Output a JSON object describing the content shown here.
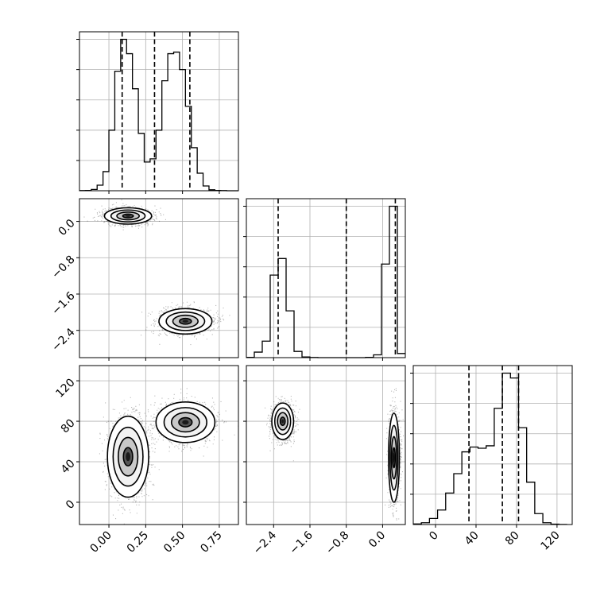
{
  "chart_data": {
    "type": "corner",
    "grid": true,
    "variables": [
      {
        "id": "p0",
        "range": [
          -0.2,
          0.88
        ],
        "ticks": [
          "0.00",
          "0.25",
          "0.50",
          "0.75"
        ],
        "tick_values": [
          0.0,
          0.25,
          0.5,
          0.75
        ],
        "quantiles": [
          0.09,
          0.31,
          0.55
        ]
      },
      {
        "id": "p1",
        "range": [
          -3.0,
          0.5
        ],
        "ticks": [
          "-2.4",
          "-1.6",
          "-0.8",
          "0.0"
        ],
        "tick_values": [
          -2.4,
          -1.6,
          -0.8,
          0.0
        ],
        "quantiles": [
          -2.3,
          -0.8,
          0.28
        ]
      },
      {
        "id": "p2",
        "range": [
          -22,
          135
        ],
        "ticks": [
          "0",
          "40",
          "80",
          "120"
        ],
        "tick_values": [
          0,
          40,
          80,
          120
        ],
        "quantiles": [
          33,
          66,
          82
        ]
      }
    ],
    "histograms": [
      {
        "variable": "p0",
        "bin_edges": [
          -0.2,
          -0.16,
          -0.12,
          -0.08,
          -0.04,
          0.0,
          0.04,
          0.08,
          0.12,
          0.16,
          0.2,
          0.24,
          0.28,
          0.32,
          0.36,
          0.4,
          0.44,
          0.48,
          0.52,
          0.56,
          0.6,
          0.64,
          0.68,
          0.72,
          0.76,
          0.8,
          0.84,
          0.88
        ],
        "counts": [
          1,
          2,
          8,
          35,
          120,
          380,
          750,
          950,
          860,
          640,
          360,
          180,
          200,
          380,
          690,
          860,
          870,
          760,
          530,
          270,
          110,
          30,
          6,
          2,
          1,
          0,
          0
        ]
      },
      {
        "variable": "p1",
        "bin_edges": [
          -3.0,
          -2.825,
          -2.65,
          -2.475,
          -2.3,
          -2.125,
          -1.95,
          -1.775,
          -1.6,
          -1.425,
          -1.25,
          -1.075,
          -0.9,
          -0.725,
          -0.55,
          -0.375,
          -0.2,
          -0.025,
          0.15,
          0.325,
          0.5
        ],
        "counts": [
          2,
          40,
          120,
          600,
          720,
          340,
          45,
          5,
          1,
          0,
          0,
          0,
          0,
          0,
          0,
          2,
          20,
          680,
          1100,
          30
        ]
      },
      {
        "variable": "p2",
        "bin_edges": [
          -22,
          -14,
          -6,
          2,
          10,
          18,
          26,
          34,
          42,
          50,
          58,
          66,
          74,
          82,
          90,
          98,
          106,
          114,
          122,
          130
        ],
        "counts": [
          5,
          15,
          50,
          120,
          260,
          420,
          600,
          640,
          630,
          650,
          960,
          1250,
          1210,
          800,
          350,
          90,
          15,
          3,
          1
        ]
      }
    ],
    "scatter_panels": [
      {
        "x": "p0",
        "y": "p1",
        "clusters": [
          {
            "center": [
              0.13,
              0.12
            ],
            "spread": [
              0.08,
              0.09
            ],
            "points": 1400
          },
          {
            "center": [
              0.52,
              -2.2
            ],
            "spread": [
              0.09,
              0.14
            ],
            "points": 1400
          }
        ]
      },
      {
        "x": "p0",
        "y": "p2",
        "clusters": [
          {
            "center": [
              0.13,
              45
            ],
            "spread": [
              0.07,
              20
            ],
            "points": 1400
          },
          {
            "center": [
              0.52,
              79
            ],
            "spread": [
              0.1,
              10
            ],
            "points": 1400
          }
        ]
      },
      {
        "x": "p1",
        "y": "p2",
        "clusters": [
          {
            "center": [
              -2.2,
              80
            ],
            "spread": [
              0.12,
              9
            ],
            "points": 1400
          },
          {
            "center": [
              0.25,
              44
            ],
            "spread": [
              0.06,
              22
            ],
            "points": 1400
          }
        ]
      }
    ]
  }
}
